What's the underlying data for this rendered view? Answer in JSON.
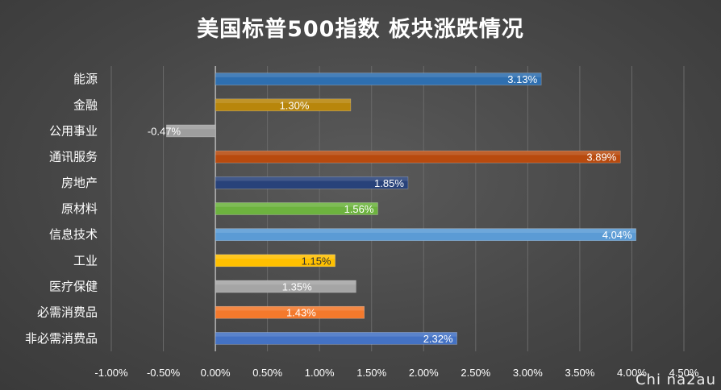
{
  "chart_data": {
    "type": "bar",
    "orientation": "horizontal",
    "title": "美国标普500指数 板块涨跌情况",
    "categories": [
      "能源",
      "金融",
      "公用事业",
      "通讯服务",
      "房地产",
      "原材料",
      "信息技术",
      "工业",
      "医疗保健",
      "必需消费品",
      "非必需消费品"
    ],
    "values": [
      3.13,
      1.3,
      -0.47,
      3.89,
      1.85,
      1.56,
      4.04,
      1.15,
      1.35,
      1.43,
      2.32
    ],
    "data_labels": [
      "3.13%",
      "1.30%",
      "-0.47%",
      "3.89%",
      "1.85%",
      "1.56%",
      "4.04%",
      "1.15%",
      "1.35%",
      "1.43%",
      "2.32%"
    ],
    "colors": [
      "#2e6fb0",
      "#b8860b",
      "#9e9e9e",
      "#b84a0e",
      "#28427a",
      "#6db33f",
      "#5b9bd5",
      "#ffc000",
      "#a5a5a5",
      "#f4792c",
      "#4472c4"
    ],
    "xlim": [
      -1.0,
      4.5
    ],
    "x_ticks": [
      -1.0,
      -0.5,
      0.0,
      0.5,
      1.0,
      1.5,
      2.0,
      2.5,
      3.0,
      3.5,
      4.0,
      4.5
    ],
    "x_tick_labels": [
      "-1.00%",
      "-0.50%",
      "0.00%",
      "0.50%",
      "1.00%",
      "1.50%",
      "2.00%",
      "2.50%",
      "3.00%",
      "3.50%",
      "4.00%",
      "4.50%"
    ],
    "grid": true,
    "legend": "none"
  },
  "watermark": "Chi na2au"
}
